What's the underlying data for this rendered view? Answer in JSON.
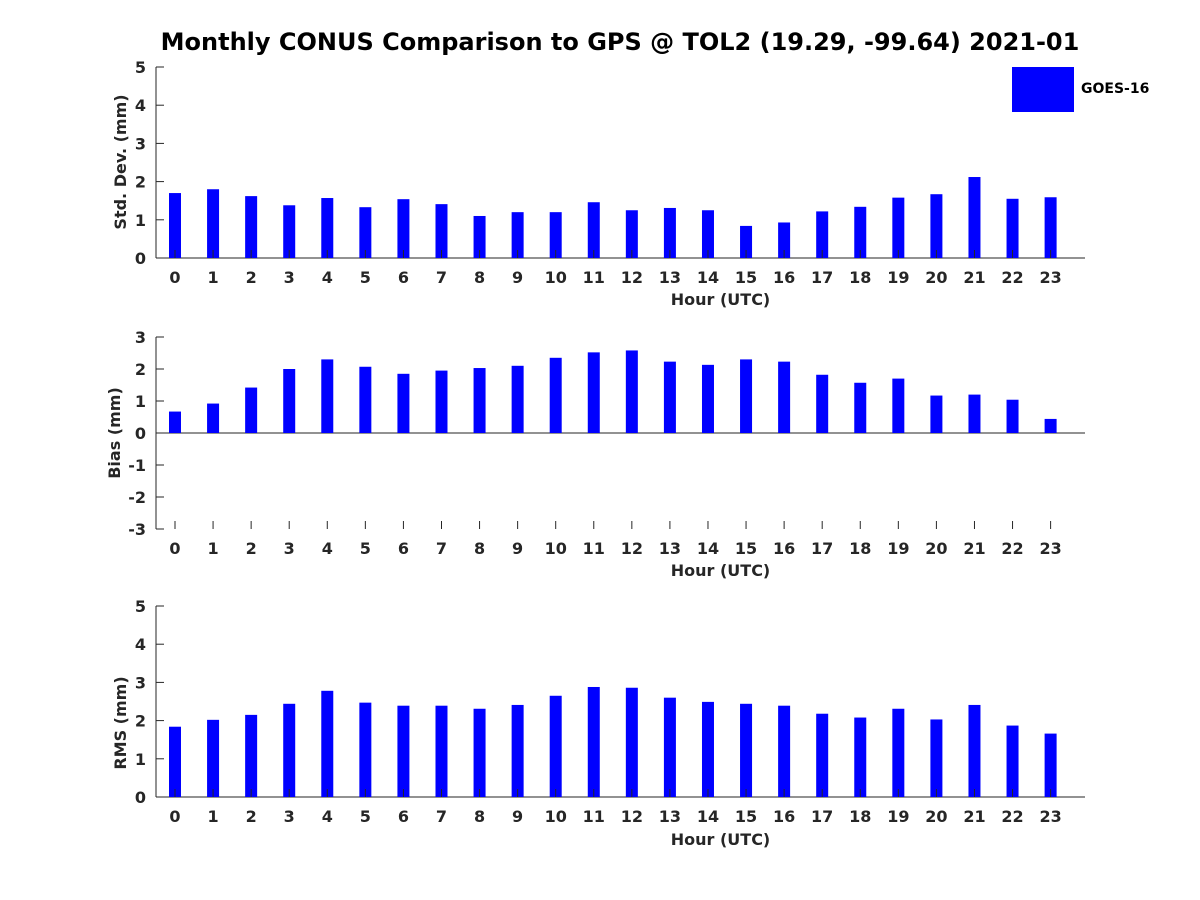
{
  "title": "Monthly CONUS Comparison to GPS @ TOL2 (19.29, -99.64) 2021-01",
  "legend": {
    "label": "GOES-16",
    "color": "#0000ff"
  },
  "chart_data": [
    {
      "type": "bar",
      "xlabel": "Hour (UTC)",
      "ylabel": "Std. Dev. (mm)",
      "ylim": [
        0,
        5
      ],
      "yticks": [
        0,
        1,
        2,
        3,
        4,
        5
      ],
      "categories": [
        "0",
        "1",
        "2",
        "3",
        "4",
        "5",
        "6",
        "7",
        "8",
        "9",
        "10",
        "11",
        "12",
        "13",
        "14",
        "15",
        "16",
        "17",
        "18",
        "19",
        "20",
        "21",
        "22",
        "23"
      ],
      "series": [
        {
          "name": "GOES-16",
          "color": "#0000ff",
          "values": [
            1.7,
            1.8,
            1.62,
            1.38,
            1.57,
            1.33,
            1.54,
            1.41,
            1.1,
            1.2,
            1.2,
            1.46,
            1.25,
            1.31,
            1.25,
            0.84,
            0.93,
            1.22,
            1.34,
            1.58,
            1.67,
            2.12,
            1.55,
            1.59
          ]
        }
      ],
      "grid": false
    },
    {
      "type": "bar",
      "xlabel": "Hour (UTC)",
      "ylabel": "Bias (mm)",
      "ylim": [
        -3,
        3
      ],
      "yticks": [
        -3,
        -2,
        -1,
        0,
        1,
        2,
        3
      ],
      "categories": [
        "0",
        "1",
        "2",
        "3",
        "4",
        "5",
        "6",
        "7",
        "8",
        "9",
        "10",
        "11",
        "12",
        "13",
        "14",
        "15",
        "16",
        "17",
        "18",
        "19",
        "20",
        "21",
        "22",
        "23"
      ],
      "series": [
        {
          "name": "GOES-16",
          "color": "#0000ff",
          "values": [
            0.67,
            0.92,
            1.42,
            2.0,
            2.3,
            2.07,
            1.85,
            1.95,
            2.03,
            2.1,
            2.35,
            2.52,
            2.58,
            2.23,
            2.13,
            2.3,
            2.23,
            1.82,
            1.57,
            1.7,
            1.17,
            1.2,
            1.04,
            0.44
          ]
        }
      ],
      "grid": false
    },
    {
      "type": "bar",
      "xlabel": "Hour (UTC)",
      "ylabel": "RMS (mm)",
      "ylim": [
        0,
        5
      ],
      "yticks": [
        0,
        1,
        2,
        3,
        4,
        5
      ],
      "categories": [
        "0",
        "1",
        "2",
        "3",
        "4",
        "5",
        "6",
        "7",
        "8",
        "9",
        "10",
        "11",
        "12",
        "13",
        "14",
        "15",
        "16",
        "17",
        "18",
        "19",
        "20",
        "21",
        "22",
        "23"
      ],
      "series": [
        {
          "name": "GOES-16",
          "color": "#0000ff",
          "values": [
            1.84,
            2.02,
            2.15,
            2.44,
            2.78,
            2.47,
            2.39,
            2.39,
            2.31,
            2.41,
            2.65,
            2.88,
            2.86,
            2.6,
            2.49,
            2.44,
            2.39,
            2.18,
            2.08,
            2.31,
            2.03,
            2.41,
            1.87,
            1.66
          ]
        }
      ],
      "grid": false
    }
  ]
}
